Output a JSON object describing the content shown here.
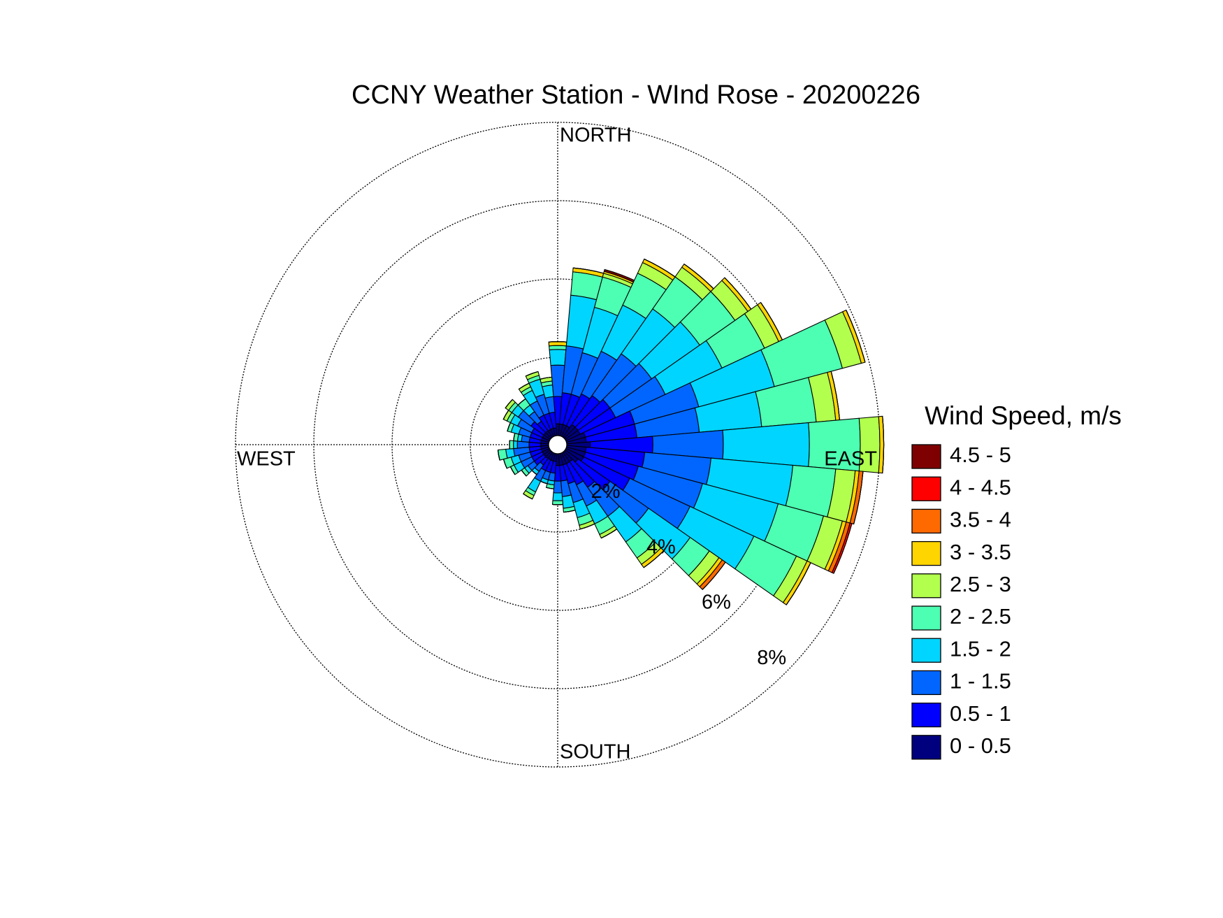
{
  "chart_data": {
    "type": "windrose",
    "title": "CCNY Weather Station - WInd Rose - 20200226",
    "legend_title": "Wind Speed, m/s",
    "direction_labels": [
      "NORTH",
      "EAST",
      "SOUTH",
      "WEST"
    ],
    "directions": [
      0,
      10,
      20,
      30,
      40,
      50,
      60,
      70,
      80,
      90,
      100,
      110,
      120,
      130,
      140,
      150,
      160,
      170,
      180,
      190,
      200,
      210,
      220,
      230,
      240,
      250,
      260,
      270,
      280,
      290,
      300,
      310,
      320,
      330,
      340,
      350
    ],
    "rlim": [
      0,
      8
    ],
    "rticks": [
      {
        "value": 2,
        "label": "2%"
      },
      {
        "value": 4,
        "label": "4%"
      },
      {
        "value": 6,
        "label": "6%"
      },
      {
        "value": 8,
        "label": "8%"
      }
    ],
    "series": [
      {
        "name": "0 - 0.5",
        "color": "#00007f",
        "values": [
          0.3,
          0.3,
          0.3,
          0.3,
          0.4,
          0.4,
          0.4,
          0.5,
          0.5,
          0.6,
          0.5,
          0.5,
          0.5,
          0.4,
          0.3,
          0.3,
          0.3,
          0.3,
          0.3,
          0.2,
          0.2,
          0.2,
          0.2,
          0.2,
          0.2,
          0.2,
          0.2,
          0.2,
          0.2,
          0.2,
          0.2,
          0.2,
          0.2,
          0.2,
          0.2,
          0.2
        ]
      },
      {
        "name": "0.5 - 1",
        "color": "#0000ff",
        "values": [
          0.7,
          0.8,
          0.8,
          0.9,
          0.9,
          1.0,
          1.0,
          1.3,
          1.3,
          1.6,
          1.5,
          1.4,
          1.3,
          1.0,
          0.8,
          0.6,
          0.5,
          0.4,
          0.4,
          0.3,
          0.3,
          0.3,
          0.2,
          0.3,
          0.3,
          0.3,
          0.3,
          0.3,
          0.3,
          0.3,
          0.3,
          0.4,
          0.3,
          0.4,
          0.4,
          0.4
        ]
      },
      {
        "name": "1 - 1.5",
        "color": "#0066ff",
        "values": [
          0.8,
          1.2,
          1.1,
          1.2,
          1.3,
          1.3,
          1.4,
          1.7,
          1.6,
          1.8,
          1.7,
          1.7,
          1.7,
          1.2,
          0.9,
          0.6,
          0.5,
          0.4,
          0.3,
          0.2,
          0.2,
          0.3,
          0.2,
          0.2,
          0.3,
          0.3,
          0.4,
          0.3,
          0.2,
          0.3,
          0.4,
          0.4,
          0.3,
          0.4,
          0.5,
          0.4
        ]
      },
      {
        "name": "1.5 - 2",
        "color": "#00d5ff",
        "values": [
          0.4,
          1.3,
          1.2,
          1.3,
          1.4,
          1.5,
          1.6,
          2.0,
          1.6,
          2.2,
          2.1,
          2.0,
          1.8,
          1.3,
          0.8,
          0.5,
          0.4,
          0.3,
          0.2,
          0.1,
          0.1,
          0.3,
          0.1,
          0.1,
          0.2,
          0.2,
          0.2,
          0.1,
          0.1,
          0.2,
          0.2,
          0.2,
          0.2,
          0.3,
          0.4,
          0.3
        ]
      },
      {
        "name": "2 - 2.5",
        "color": "#4dffb2",
        "values": [
          0.1,
          0.6,
          0.8,
          0.9,
          1.0,
          1.1,
          1.2,
          1.8,
          1.4,
          1.3,
          1.1,
          1.2,
          1.2,
          0.6,
          0.5,
          0.3,
          0.2,
          0.1,
          0.1,
          0.1,
          0,
          0.1,
          0,
          0.1,
          0.1,
          0.2,
          0.2,
          0.1,
          0.1,
          0.1,
          0.1,
          0.1,
          0.2,
          0.1,
          0.1,
          0.1
        ]
      },
      {
        "name": "2.5 - 3",
        "color": "#b3ff4d",
        "values": [
          0,
          0,
          0.1,
          0.3,
          0.3,
          0.4,
          0.4,
          0.5,
          0.5,
          0.5,
          0.5,
          0.5,
          0.3,
          0.3,
          0.2,
          0.1,
          0.1,
          0,
          0,
          0,
          0,
          0.1,
          0,
          0,
          0,
          0,
          0,
          0,
          0,
          0,
          0.1,
          0.1,
          0,
          0.1,
          0.1,
          0.1
        ]
      },
      {
        "name": "3 - 3.5",
        "color": "#ffd500",
        "values": [
          0.1,
          0.1,
          0.05,
          0.1,
          0.1,
          0.1,
          0.1,
          0.1,
          0.1,
          0.1,
          0.1,
          0.1,
          0.1,
          0.1,
          0.1,
          0,
          0,
          0,
          0,
          0,
          0,
          0,
          0,
          0,
          0,
          0,
          0,
          0,
          0,
          0,
          0,
          0,
          0,
          0,
          0,
          0
        ]
      },
      {
        "name": "3.5 - 4",
        "color": "#ff6a00",
        "values": [
          0,
          0,
          0,
          0,
          0,
          0,
          0,
          0,
          0,
          0,
          0.1,
          0.1,
          0,
          0.1,
          0,
          0,
          0,
          0,
          0,
          0,
          0,
          0,
          0,
          0,
          0,
          0,
          0,
          0,
          0,
          0,
          0,
          0,
          0,
          0,
          0,
          0
        ]
      },
      {
        "name": "4 - 4.5",
        "color": "#ff0000",
        "values": [
          0,
          0,
          0,
          0,
          0,
          0,
          0,
          0,
          0,
          0,
          0,
          0.05,
          0,
          0,
          0,
          0,
          0,
          0,
          0,
          0,
          0,
          0,
          0,
          0,
          0,
          0,
          0,
          0,
          0,
          0,
          0,
          0,
          0,
          0,
          0,
          0
        ]
      },
      {
        "name": "4.5 - 5",
        "color": "#7f0000",
        "values": [
          0,
          0,
          0.05,
          0,
          0,
          0,
          0,
          0,
          0,
          0,
          0,
          0,
          0,
          0,
          0,
          0,
          0,
          0,
          0,
          0,
          0,
          0,
          0,
          0,
          0,
          0,
          0,
          0,
          0,
          0,
          0,
          0,
          0,
          0,
          0,
          0
        ]
      }
    ]
  }
}
